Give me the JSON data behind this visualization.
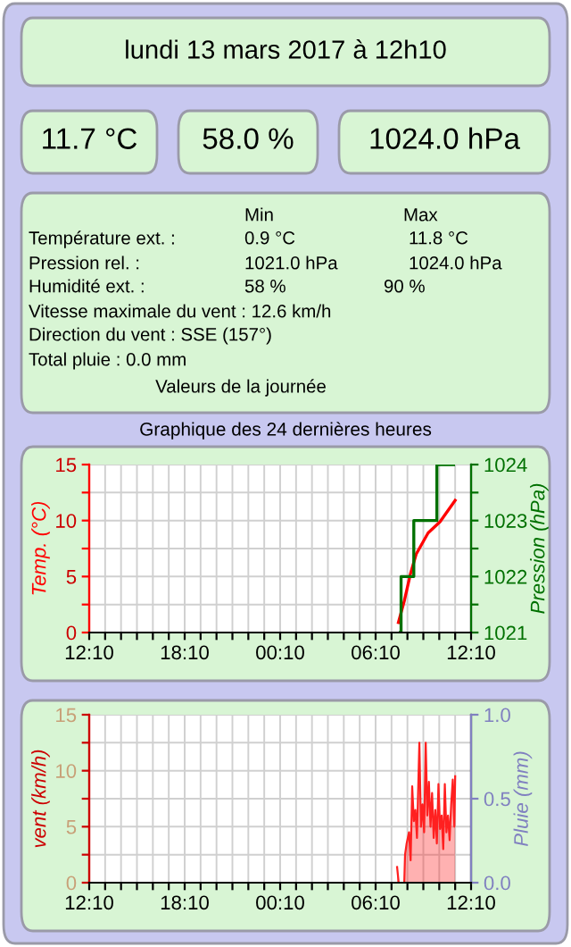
{
  "chart_data": [
    {
      "type": "other",
      "title": "lundi 13 mars 2017 à 12h10",
      "annotations": [
        "11.7 °C",
        "58.0 %",
        "1024.0 hPa",
        "Min",
        "Max",
        "Température ext. :",
        "0.9 °C",
        "11.8 °C",
        "Pression rel. :",
        "1021.0 hPa",
        "1024.0 hPa",
        "Humidité ext. :",
        "58 %",
        "90 %",
        "Vitesse maximale du vent : 12.6 km/h",
        "Direction du vent : SSE (157°)",
        "Total pluie : 0.0 mm",
        "Valeurs de la journée"
      ]
    },
    {
      "type": "line",
      "title": "Graphique des 24 dernières heures",
      "ylabel": "Temp. (°C)",
      "y2label": "Pression (hPa)",
      "grid": true,
      "xlim": [
        "2017-03-12T12:10",
        "2017-03-13T12:10"
      ],
      "xticks": [
        {
          "value": "2017-03-12T12:10",
          "label": "12:10"
        },
        {
          "value": "2017-03-12T13:10",
          "label": null
        },
        {
          "value": "2017-03-12T14:10",
          "label": null
        },
        {
          "value": "2017-03-12T15:10",
          "label": null
        },
        {
          "value": "2017-03-12T16:10",
          "label": null
        },
        {
          "value": "2017-03-12T17:10",
          "label": null
        },
        {
          "value": "2017-03-12T18:10",
          "label": "18:10"
        },
        {
          "value": "2017-03-12T19:10",
          "label": null
        },
        {
          "value": "2017-03-12T20:10",
          "label": null
        },
        {
          "value": "2017-03-12T21:10",
          "label": null
        },
        {
          "value": "2017-03-12T22:10",
          "label": null
        },
        {
          "value": "2017-03-12T23:10",
          "label": null
        },
        {
          "value": "2017-03-13T00:10",
          "label": "00:10"
        },
        {
          "value": "2017-03-13T01:10",
          "label": null
        },
        {
          "value": "2017-03-13T02:10",
          "label": null
        },
        {
          "value": "2017-03-13T03:10",
          "label": null
        },
        {
          "value": "2017-03-13T04:10",
          "label": null
        },
        {
          "value": "2017-03-13T05:10",
          "label": null
        },
        {
          "value": "2017-03-13T06:10",
          "label": "06:10"
        },
        {
          "value": "2017-03-13T07:10",
          "label": null
        },
        {
          "value": "2017-03-13T08:10",
          "label": null
        },
        {
          "value": "2017-03-13T09:10",
          "label": null
        },
        {
          "value": "2017-03-13T10:10",
          "label": null
        },
        {
          "value": "2017-03-13T11:10",
          "label": null
        },
        {
          "value": "2017-03-13T12:10",
          "label": "12:10"
        }
      ],
      "ylim": [
        0,
        15
      ],
      "yticks": [
        0,
        {
          "value": 2.5,
          "label": null
        },
        5,
        {
          "value": 7.5,
          "label": null
        },
        10,
        {
          "value": 12.5,
          "label": null
        },
        15
      ],
      "y2lim": [
        1021,
        1024
      ],
      "y2ticks": [
        1021,
        {
          "value": 1021.5,
          "label": null
        },
        1022,
        {
          "value": 1022.5,
          "label": null
        },
        1023,
        {
          "value": 1023.5,
          "label": null
        },
        1024
      ],
      "series": [
        {
          "type": "line",
          "color": "#ff0000",
          "x": [
            "2017-03-13T07:36",
            "2017-03-13T07:58",
            "2017-03-13T08:21",
            "2017-03-13T08:43",
            "2017-03-13T09:28",
            "2017-03-13T10:13",
            "2017-03-13T11:10"
          ],
          "values": [
            0.9,
            2.8,
            5.2,
            7.0,
            8.9,
            9.9,
            11.8
          ]
        },
        {
          "type": "step",
          "axis": "y2",
          "color": "#007000",
          "x": [
            "2017-03-13T07:43",
            "2017-03-13T07:46",
            "2017-03-13T08:34",
            "2017-03-13T10:01",
            "2017-03-13T11:04"
          ],
          "values": [
            1021,
            1022,
            1023,
            1024,
            1024
          ]
        }
      ]
    },
    {
      "type": "area",
      "ylabel": "vent (km/h)",
      "y2label": "Pluie (mm)",
      "grid": true,
      "xlim": [
        "2017-03-12T12:10",
        "2017-03-13T12:10"
      ],
      "xticks": [
        {
          "value": "2017-03-12T12:10",
          "label": "12:10"
        },
        {
          "value": "2017-03-12T13:10",
          "label": null
        },
        {
          "value": "2017-03-12T14:10",
          "label": null
        },
        {
          "value": "2017-03-12T15:10",
          "label": null
        },
        {
          "value": "2017-03-12T16:10",
          "label": null
        },
        {
          "value": "2017-03-12T17:10",
          "label": null
        },
        {
          "value": "2017-03-12T18:10",
          "label": "18:10"
        },
        {
          "value": "2017-03-12T19:10",
          "label": null
        },
        {
          "value": "2017-03-12T20:10",
          "label": null
        },
        {
          "value": "2017-03-12T21:10",
          "label": null
        },
        {
          "value": "2017-03-12T22:10",
          "label": null
        },
        {
          "value": "2017-03-12T23:10",
          "label": null
        },
        {
          "value": "2017-03-13T00:10",
          "label": "00:10"
        },
        {
          "value": "2017-03-13T01:10",
          "label": null
        },
        {
          "value": "2017-03-13T02:10",
          "label": null
        },
        {
          "value": "2017-03-13T03:10",
          "label": null
        },
        {
          "value": "2017-03-13T04:10",
          "label": null
        },
        {
          "value": "2017-03-13T05:10",
          "label": null
        },
        {
          "value": "2017-03-13T06:10",
          "label": "06:10"
        },
        {
          "value": "2017-03-13T07:10",
          "label": null
        },
        {
          "value": "2017-03-13T08:10",
          "label": null
        },
        {
          "value": "2017-03-13T09:10",
          "label": null
        },
        {
          "value": "2017-03-13T10:10",
          "label": null
        },
        {
          "value": "2017-03-13T11:10",
          "label": null
        },
        {
          "value": "2017-03-13T12:10",
          "label": "12:10"
        }
      ],
      "ylim": [
        0,
        15
      ],
      "yticks": [
        0,
        {
          "value": 2.5,
          "label": null
        },
        5,
        {
          "value": 7.5,
          "label": null
        },
        10,
        {
          "value": 12.5,
          "label": null
        },
        15
      ],
      "y2lim": [
        0,
        1
      ],
      "y2ticks": [
        {
          "value": 0,
          "label": "0.0"
        },
        {
          "value": 0.5,
          "label": "0.5"
        },
        {
          "value": 1,
          "label": "1.0"
        }
      ],
      "series": [
        {
          "type": "area",
          "color": "#ff2020",
          "x": [
            "2017-03-13T07:31",
            "2017-03-13T07:37",
            "2017-03-13T07:58",
            "2017-03-13T08:01",
            "2017-03-13T08:07",
            "2017-03-13T08:16",
            "2017-03-13T08:22",
            "2017-03-13T08:28",
            "2017-03-13T08:34",
            "2017-03-13T08:40",
            "2017-03-13T08:46",
            "2017-03-13T08:55",
            "2017-03-13T09:01",
            "2017-03-13T09:07",
            "2017-03-13T09:13",
            "2017-03-13T09:19",
            "2017-03-13T09:25",
            "2017-03-13T09:31",
            "2017-03-13T09:37",
            "2017-03-13T09:43",
            "2017-03-13T09:49",
            "2017-03-13T09:55",
            "2017-03-13T10:01",
            "2017-03-13T10:07",
            "2017-03-13T10:13",
            "2017-03-13T10:19",
            "2017-03-13T10:25",
            "2017-03-13T10:31",
            "2017-03-13T10:37",
            "2017-03-13T10:43",
            "2017-03-13T10:49",
            "2017-03-13T10:55",
            "2017-03-13T11:01",
            "2017-03-13T11:07",
            "2017-03-13T11:10"
          ],
          "values": [
            1.4,
            0,
            0,
            2.5,
            3.5,
            4.5,
            2.0,
            8.6,
            5.5,
            6.5,
            4,
            12.5,
            5,
            7,
            4.5,
            12.5,
            6,
            9,
            5,
            8,
            4,
            6.5,
            3.5,
            8.8,
            4.8,
            6,
            3,
            8.8,
            4.5,
            6,
            3.8,
            7,
            9.2,
            5,
            9.5
          ]
        }
      ]
    }
  ]
}
